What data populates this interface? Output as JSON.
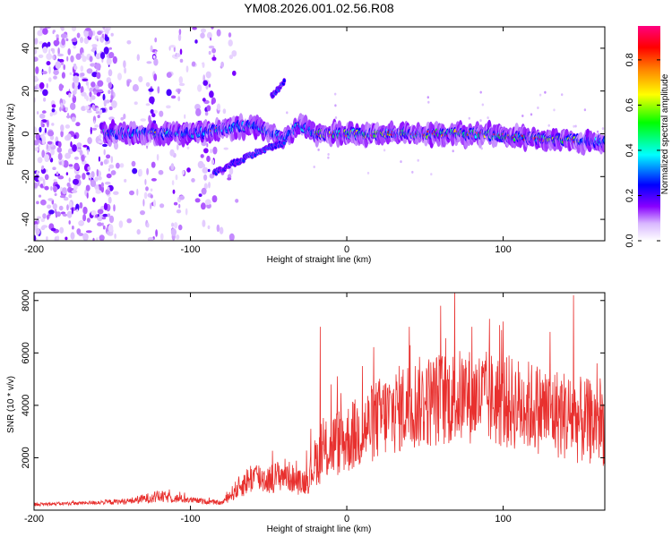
{
  "title": "YM08.2026.001.02.56.R08",
  "chart_data": [
    {
      "type": "heatmap",
      "panel": "spectrogram",
      "xlabel": "Height of straight line (km)",
      "ylabel": "Frequency (Hz)",
      "xlim": [
        -200,
        165
      ],
      "ylim": [
        -50,
        50
      ],
      "xticks": [
        -200,
        -100,
        0,
        100
      ],
      "yticks": [
        -40,
        -20,
        0,
        20,
        40
      ],
      "xtick_labels": [
        "-200",
        "-100",
        "0",
        "100"
      ],
      "ytick_labels": [
        "-40",
        "-20",
        "0",
        "20",
        "40"
      ],
      "colorbar": {
        "label": "Normalized spectral amplitude",
        "range": [
          0,
          0.95
        ],
        "ticks": [
          0,
          0.2,
          0.4,
          0.6,
          0.8
        ],
        "tick_labels": [
          "0.0",
          "0.2",
          "0.4",
          "0.6",
          "0.8"
        ],
        "colormap": [
          "#ffffff",
          "#8800ff",
          "#0000ff",
          "#00ffff",
          "#00ff00",
          "#ffff00",
          "#ff8000",
          "#ff0000",
          "#ff0080"
        ]
      },
      "main_band": {
        "x_range": [
          -155,
          165
        ],
        "frequency_center": [
          [
            -155,
            0
          ],
          [
            -100,
            0
          ],
          [
            -80,
            2
          ],
          [
            -60,
            4
          ],
          [
            -40,
            -2
          ],
          [
            -30,
            4
          ],
          [
            -20,
            0
          ],
          [
            0,
            0
          ],
          [
            40,
            0
          ],
          [
            80,
            0
          ],
          [
            120,
            -2
          ],
          [
            165,
            -4
          ]
        ],
        "peak_amplitude_region": [
          -20,
          150
        ]
      },
      "secondary_features": [
        {
          "description": "linear trend",
          "points": [
            [
              -85,
              -18
            ],
            [
              -55,
              -8
            ],
            [
              -40,
              -4
            ]
          ]
        },
        {
          "description": "isolated feature",
          "points": [
            [
              -48,
              18
            ],
            [
              -40,
              24
            ]
          ]
        }
      ]
    },
    {
      "type": "line",
      "panel": "snr",
      "xlabel": "Height of straight line (km)",
      "ylabel": "SNR (10 * v/v)",
      "xlim": [
        -200,
        165
      ],
      "ylim": [
        0,
        8300
      ],
      "xticks": [
        -200,
        -100,
        0,
        100
      ],
      "yticks": [
        2000,
        4000,
        6000,
        8000
      ],
      "xtick_labels": [
        "-200",
        "-100",
        "0",
        "100"
      ],
      "ytick_labels": [
        "2000",
        "4000",
        "6000",
        "8000"
      ],
      "color": "#e8302e",
      "envelope": {
        "x": [
          -200,
          -170,
          -140,
          -120,
          -100,
          -80,
          -70,
          -60,
          -50,
          -40,
          -30,
          -25,
          -20,
          -15,
          -10,
          0,
          10,
          20,
          40,
          60,
          80,
          100,
          120,
          140,
          150,
          165
        ],
        "base": [
          200,
          250,
          300,
          450,
          350,
          250,
          700,
          1100,
          1000,
          1200,
          900,
          1000,
          1600,
          1800,
          2100,
          2300,
          2600,
          3000,
          3500,
          3700,
          3800,
          3600,
          3400,
          3100,
          2900,
          2800
        ],
        "amp": [
          80,
          80,
          150,
          300,
          150,
          100,
          500,
          800,
          700,
          800,
          600,
          700,
          1200,
          1400,
          1600,
          1700,
          1800,
          2000,
          2200,
          2300,
          2300,
          2300,
          2200,
          2200,
          2100,
          2000
        ]
      },
      "spikes": [
        [
          -17,
          7000
        ],
        [
          -10,
          4800
        ],
        [
          10,
          5500
        ],
        [
          40,
          7000
        ],
        [
          60,
          7800
        ],
        [
          80,
          7000
        ],
        [
          100,
          7200
        ],
        [
          130,
          6800
        ],
        [
          145,
          8200
        ],
        [
          160,
          5600
        ]
      ]
    }
  ]
}
